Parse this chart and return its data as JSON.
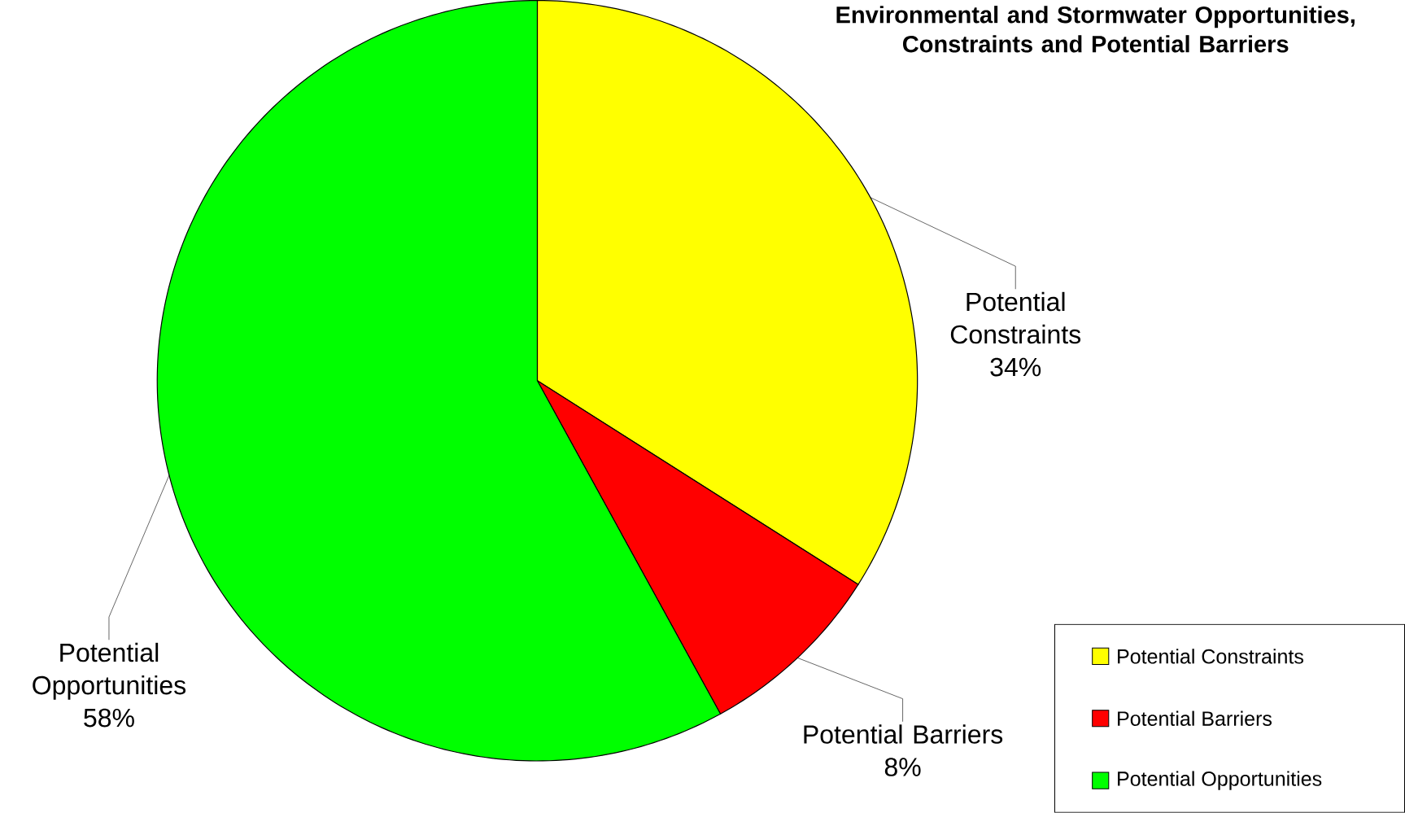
{
  "chart_data": {
    "type": "pie",
    "title": "Environmental and Stormwater Opportunities, Constraints and Potential Barriers",
    "categories": [
      "Potential Constraints",
      "Potential Barriers",
      "Potential Opportunities"
    ],
    "values": [
      34,
      8,
      58
    ],
    "colors": [
      "#ffff00",
      "#ff0000",
      "#00ff00"
    ],
    "value_labels": [
      "34%",
      "8%",
      "58%"
    ],
    "legend": "bottom right"
  }
}
